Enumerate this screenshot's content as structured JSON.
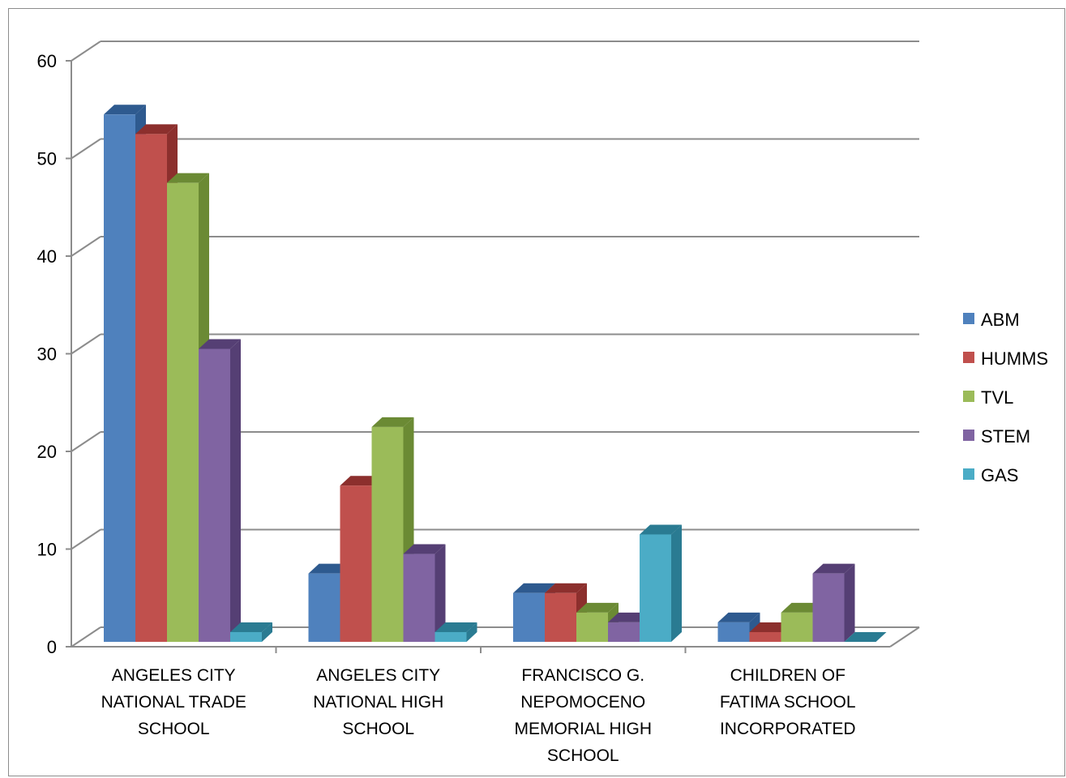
{
  "chart_data": {
    "type": "bar",
    "title": "",
    "xlabel": "",
    "ylabel": "",
    "ylim": [
      0,
      60
    ],
    "yticks": [
      0,
      10,
      20,
      30,
      40,
      50,
      60
    ],
    "grid": true,
    "legend_position": "right",
    "categories": [
      [
        "ANGELES CITY",
        "NATIONAL TRADE",
        "SCHOOL"
      ],
      [
        "ANGELES CITY",
        "NATIONAL HIGH",
        "SCHOOL"
      ],
      [
        "FRANCISCO G.",
        "NEPOMOCENO",
        "MEMORIAL HIGH",
        "SCHOOL"
      ],
      [
        "CHILDREN OF",
        "FATIMA SCHOOL",
        "INCORPORATED"
      ]
    ],
    "series": [
      {
        "name": "ABM",
        "color": "#4f81bd",
        "side": "#2e5a8f",
        "values": [
          54,
          7,
          5,
          2
        ]
      },
      {
        "name": "HUMMS",
        "color": "#c0504d",
        "side": "#8c2f2d",
        "values": [
          52,
          16,
          5,
          1
        ]
      },
      {
        "name": "TVL",
        "color": "#9bbb59",
        "side": "#6b8a34",
        "values": [
          47,
          22,
          3,
          3
        ]
      },
      {
        "name": "STEM",
        "color": "#8064a2",
        "side": "#553f74",
        "values": [
          30,
          9,
          2,
          7
        ]
      },
      {
        "name": "GAS",
        "color": "#4bacc6",
        "side": "#2a7b92",
        "values": [
          1,
          1,
          11,
          0
        ]
      }
    ]
  }
}
